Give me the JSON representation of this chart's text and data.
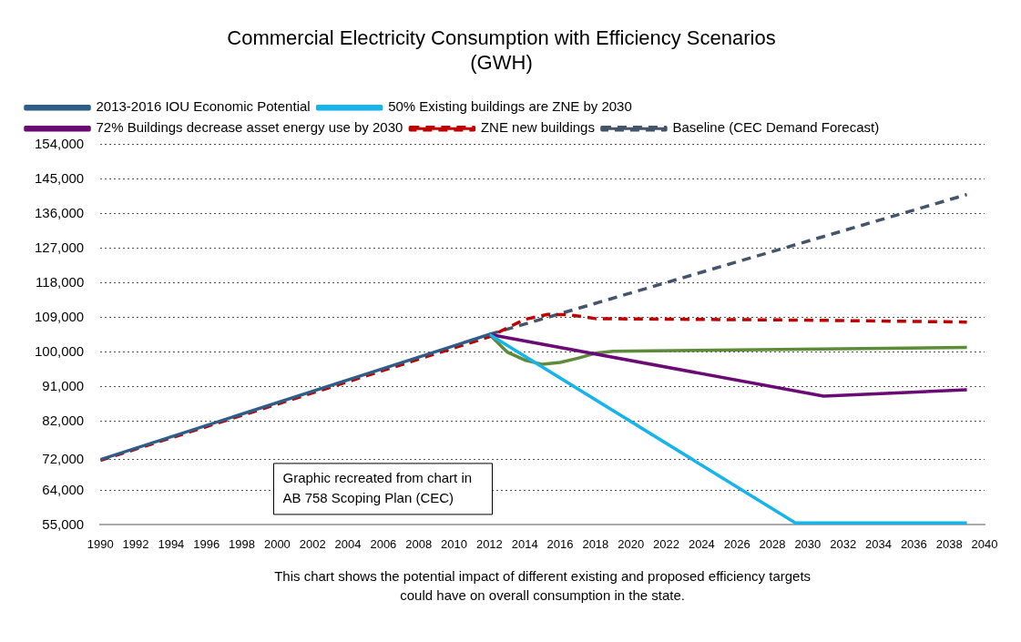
{
  "chart_data": {
    "type": "line",
    "title": "Commercial Electricity Consumption with Efficiency Scenarios",
    "subtitle": "(GWH)",
    "xlim": [
      1990,
      2040
    ],
    "xticks": [
      1990,
      1992,
      1994,
      1996,
      1998,
      2000,
      2002,
      2004,
      2006,
      2008,
      2010,
      2012,
      2014,
      2016,
      2018,
      2020,
      2022,
      2024,
      2026,
      2028,
      2030,
      2032,
      2034,
      2036,
      2038,
      2040
    ],
    "ylim": [
      55000,
      154000
    ],
    "yticks": [
      {
        "value": 55000,
        "label": "55,000"
      },
      {
        "value": 64000,
        "label": "64,000"
      },
      {
        "value": 72000,
        "label": "72,000"
      },
      {
        "value": 82000,
        "label": "82,000"
      },
      {
        "value": 91000,
        "label": "91,000"
      },
      {
        "value": 100000,
        "label": "100,000"
      },
      {
        "value": 109000,
        "label": "109,000"
      },
      {
        "value": 118000,
        "label": "118,000"
      },
      {
        "value": 127000,
        "label": "127,000"
      },
      {
        "value": 136000,
        "label": "136,000"
      },
      {
        "value": 145000,
        "label": "145,000"
      },
      {
        "value": 154000,
        "label": "154,000"
      }
    ],
    "grid": "y",
    "legend": "top",
    "line_style": "solid",
    "marker": "none",
    "annotations": [
      "Graphic recreated from chart in AB 758 Scoping Plan (CEC)",
      "This chart shows the potential impact of different existing and proposed efficiency targets could have on overall consumption in the state."
    ],
    "series": [
      {
        "name": "2013-2016 IOU Economic Potential",
        "color": "#2e5d88",
        "x": [
          1990,
          2012
        ],
        "values": [
          72000,
          104600
        ]
      },
      {
        "name": "50% Existing buildings are ZNE by 2030",
        "color": "#16b4ea",
        "x": [
          2012,
          2029.3,
          2039
        ],
        "values": [
          104600,
          55500,
          55500
        ]
      },
      {
        "name": "72% Buildings decrease asset energy use by 2030",
        "color": "#6a0a74",
        "x": [
          2012,
          2030.9,
          2039
        ],
        "values": [
          104600,
          88500,
          90200
        ]
      },
      {
        "name": "ZNE new buildings",
        "color": "#c00000",
        "line_style": "dashed",
        "x": [
          1990,
          2012,
          2014,
          2015.3,
          2016.5,
          2018,
          2030,
          2039
        ],
        "values": [
          71800,
          104000,
          108500,
          109800,
          109700,
          108700,
          108300,
          107800
        ]
      },
      {
        "name": "Baseline (CEC Demand Forecast)",
        "color": "#44546a",
        "line_style": "dashed",
        "x": [
          2012,
          2039
        ],
        "values": [
          104600,
          141000
        ]
      },
      {
        "color": "#5e8b3a",
        "x": [
          2012,
          2013,
          2014,
          2015,
          2016,
          2017,
          2018,
          2019,
          2039
        ],
        "values": [
          104600,
          100000,
          97900,
          96800,
          97300,
          98400,
          99700,
          100200,
          101200
        ]
      }
    ]
  }
}
